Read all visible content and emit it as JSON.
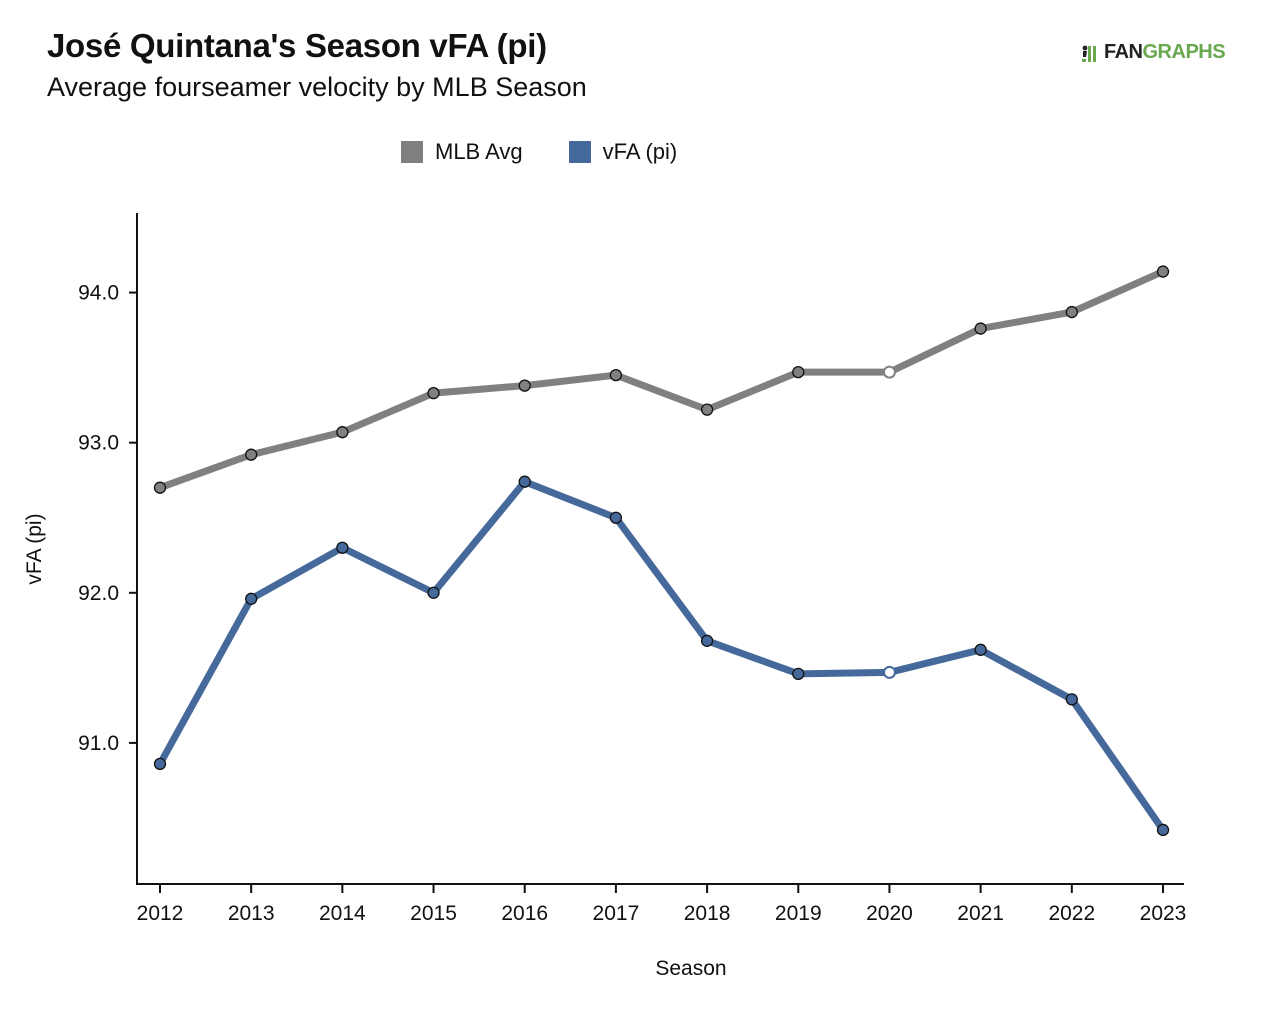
{
  "header": {
    "title": "José Quintana's Season vFA (pi)",
    "subtitle": "Average fourseamer velocity by MLB Season",
    "logo_fan": "FAN",
    "logo_graphs": "GRAPHS"
  },
  "chart_data": {
    "type": "line",
    "xlabel": "Season",
    "ylabel": "vFA (pi)",
    "x": [
      2012,
      2013,
      2014,
      2015,
      2016,
      2017,
      2018,
      2019,
      2020,
      2021,
      2022,
      2023
    ],
    "y_ticks": [
      "91.0",
      "92.0",
      "93.0",
      "94.0"
    ],
    "ylim": [
      90.06,
      94.53
    ],
    "grid": false,
    "legend_position": "top-center",
    "series": [
      {
        "name": "MLB Avg",
        "color": "#808080",
        "values": [
          92.7,
          92.92,
          93.07,
          93.33,
          93.38,
          93.45,
          93.22,
          93.47,
          93.47,
          93.76,
          93.87,
          94.14
        ],
        "hollow_points": [
          2020
        ]
      },
      {
        "name": "vFA (pi)",
        "color": "#45699a",
        "values": [
          90.86,
          91.96,
          92.3,
          92.0,
          92.74,
          92.5,
          91.68,
          91.46,
          91.47,
          91.62,
          91.29,
          90.42
        ],
        "hollow_points": [
          2020
        ]
      }
    ]
  }
}
